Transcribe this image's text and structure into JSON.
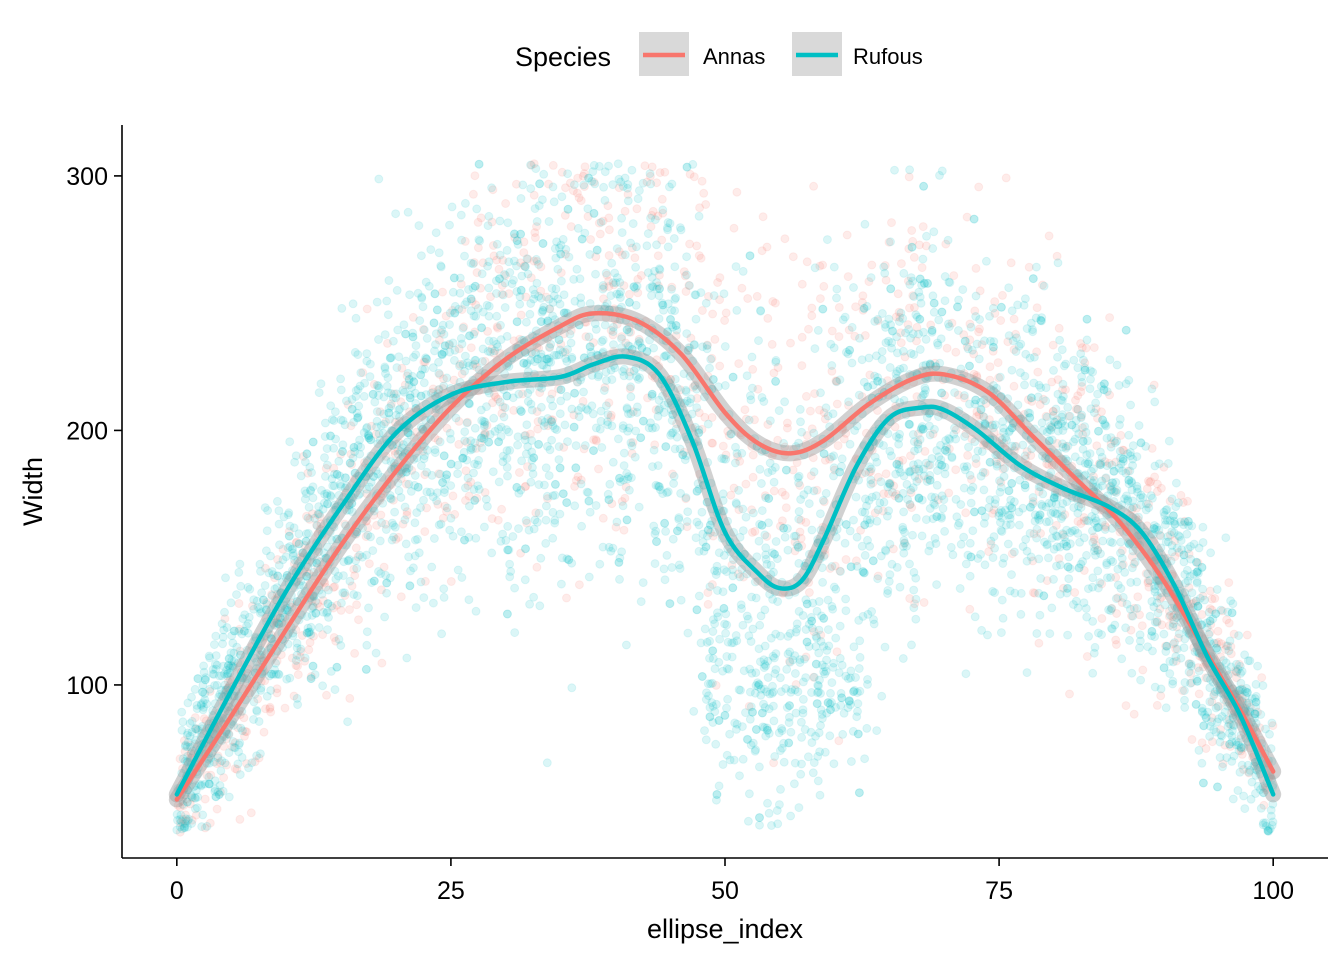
{
  "chart_data": {
    "type": "scatter",
    "title": "",
    "xlabel": "ellipse_index",
    "ylabel": "Width",
    "xlim": [
      -5,
      105
    ],
    "ylim": [
      32,
      320
    ],
    "x_ticks": [
      0,
      25,
      50,
      75,
      100
    ],
    "x_tick_labels": [
      "0",
      "25",
      "50",
      "75",
      "100"
    ],
    "y_ticks": [
      100,
      200,
      300
    ],
    "y_tick_labels": [
      "100",
      "200",
      "300"
    ],
    "grid": false,
    "legend": {
      "title": "Species",
      "position": "top",
      "entries": [
        {
          "label": "Annas",
          "color": "#F8766D"
        },
        {
          "label": "Rufous",
          "color": "#00BFC4"
        }
      ]
    },
    "series": [
      {
        "name": "Annas",
        "color": "#F8766D",
        "smooth_x": [
          0,
          5,
          10,
          15,
          20,
          25,
          30,
          35,
          38,
          42,
          46,
          50,
          53,
          56,
          59,
          63,
          67,
          70,
          74,
          78,
          82,
          86,
          90,
          94,
          97,
          100
        ],
        "smooth_y": [
          55,
          88,
          122,
          155,
          184,
          209,
          228,
          241,
          246,
          243,
          230,
          207,
          195,
          191,
          196,
          210,
          220,
          222,
          215,
          198,
          181,
          164,
          141,
          112,
          90,
          66
        ]
      },
      {
        "name": "Rufous",
        "color": "#00BFC4",
        "smooth_x": [
          0,
          5,
          10,
          15,
          20,
          25,
          30,
          35,
          38,
          41,
          44,
          47,
          50,
          53,
          55,
          57,
          59,
          62,
          65,
          68,
          70,
          73,
          77,
          81,
          85,
          88,
          91,
          94,
          97,
          100
        ],
        "smooth_y": [
          57,
          98,
          137,
          170,
          199,
          214,
          219,
          221,
          226,
          229,
          222,
          196,
          160,
          144,
          138,
          141,
          157,
          186,
          205,
          209,
          208,
          200,
          186,
          177,
          170,
          160,
          139,
          111,
          88,
          57
        ]
      }
    ]
  }
}
